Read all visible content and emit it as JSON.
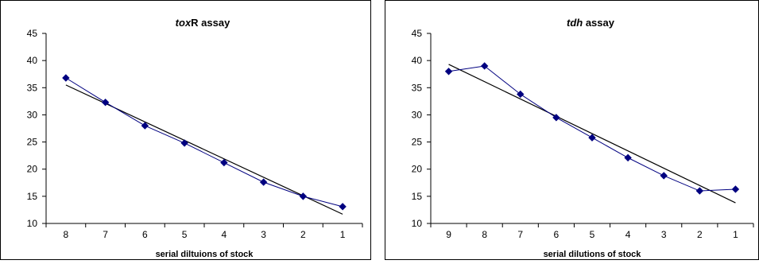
{
  "chart_data": [
    {
      "type": "line",
      "title": {
        "italic": "tox",
        "rest": "R assay"
      },
      "xlabel": "serial diltuions of stock",
      "ylabel": "",
      "ylim": [
        10,
        45
      ],
      "yticks": [
        10,
        15,
        20,
        25,
        30,
        35,
        40,
        45
      ],
      "categories": [
        "8",
        "7",
        "6",
        "5",
        "4",
        "3",
        "2",
        "1"
      ],
      "grid": false,
      "legend": "none",
      "series": [
        {
          "values": [
            36.8,
            32.3,
            28.0,
            24.8,
            21.2,
            17.6,
            15.0,
            13.1
          ],
          "color": "#000080",
          "marker": "diamond"
        }
      ],
      "trendline": {
        "start": 35.5,
        "end": 11.7,
        "color": "#000000"
      }
    },
    {
      "type": "line",
      "title": {
        "italic": "tdh",
        "rest": " assay"
      },
      "xlabel": "serial dilutions of stock",
      "ylabel": "",
      "ylim": [
        10,
        45
      ],
      "yticks": [
        10,
        15,
        20,
        25,
        30,
        35,
        40,
        45
      ],
      "categories": [
        "9",
        "8",
        "7",
        "6",
        "5",
        "4",
        "3",
        "2",
        "1"
      ],
      "grid": false,
      "legend": "none",
      "series": [
        {
          "values": [
            38.0,
            39.0,
            33.8,
            29.5,
            25.8,
            22.1,
            18.8,
            16.0,
            16.3
          ],
          "color": "#000080",
          "marker": "diamond"
        }
      ],
      "trendline": {
        "start": 39.3,
        "end": 13.8,
        "color": "#000000"
      }
    }
  ]
}
